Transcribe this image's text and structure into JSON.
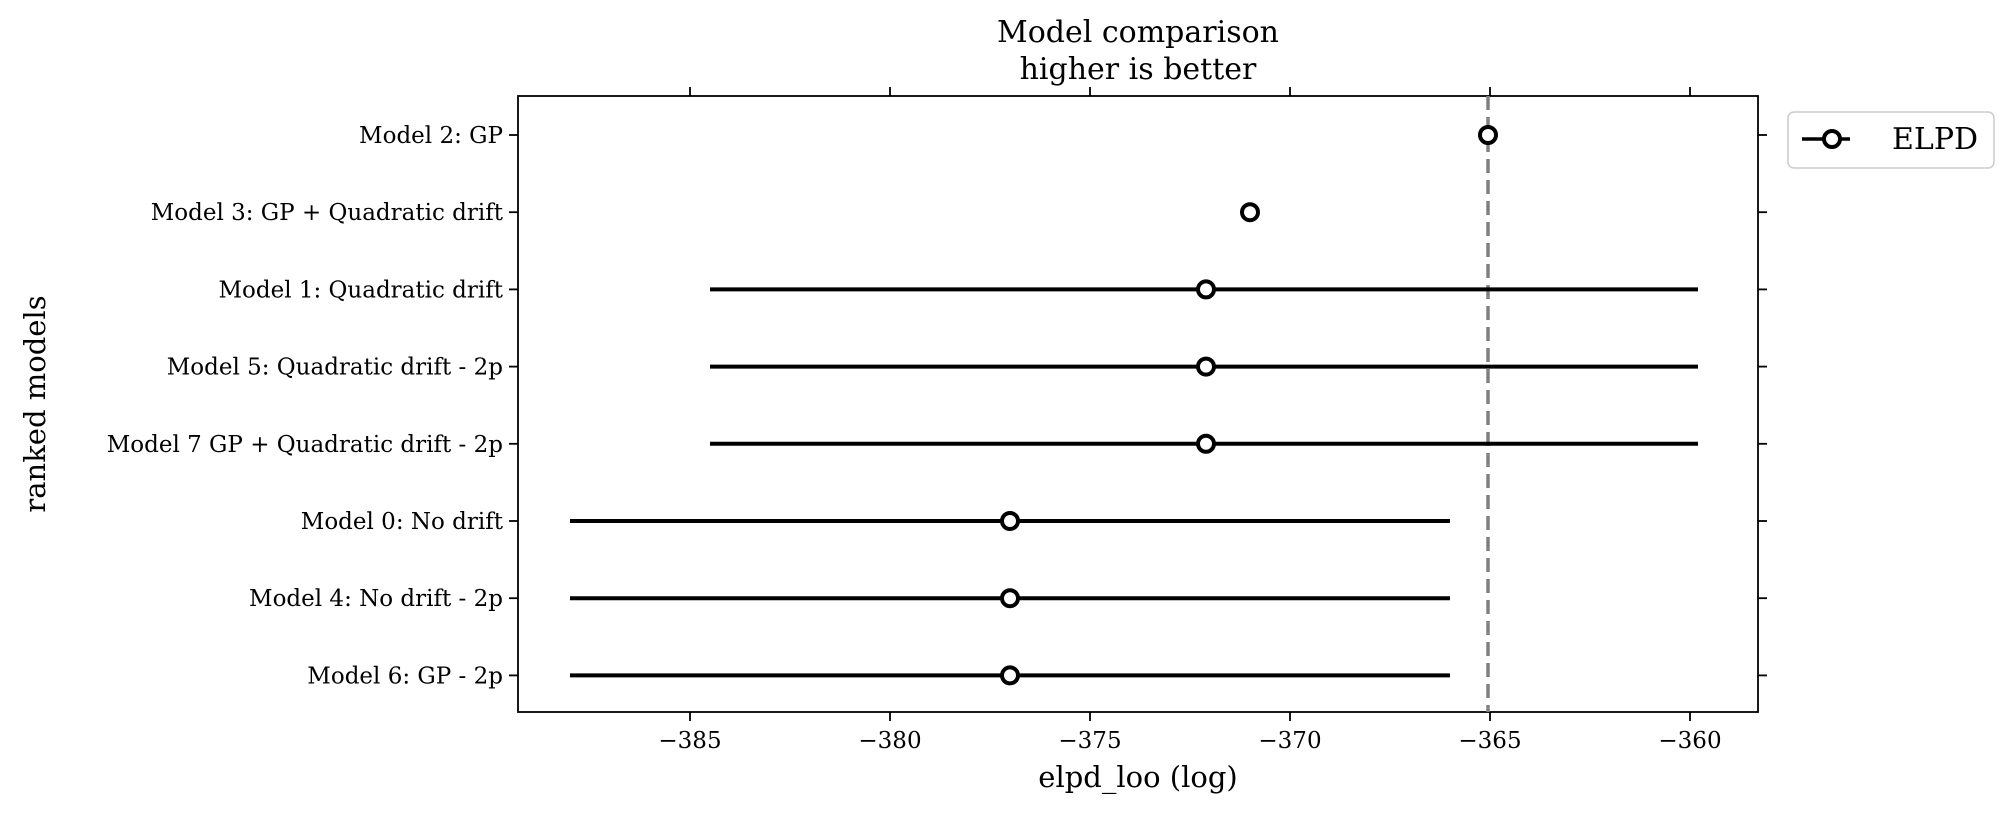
{
  "chart_data": {
    "type": "scatter",
    "title_lines": [
      "Model comparison",
      "higher is better"
    ],
    "xlabel": "elpd_loo (log)",
    "ylabel": "ranked models",
    "xlim": [
      -389.3,
      -358.3
    ],
    "x_ticks": [
      -385,
      -380,
      -375,
      -370,
      -365,
      -360
    ],
    "x_tick_labels": [
      "−385",
      "−380",
      "−375",
      "−370",
      "−365",
      "−360"
    ],
    "categories": [
      "Model 2: GP",
      "Model 3: GP + Quadratic drift",
      "Model 1: Quadratic drift",
      "Model 5: Quadratic drift - 2p",
      "Model 7 GP + Quadratic drift - 2p",
      "Model 0: No drift",
      "Model 4: No drift - 2p",
      "Model 6: GP - 2p"
    ],
    "series": [
      {
        "name": "ELPD",
        "values": [
          -365.05,
          -371.0,
          -372.1,
          -372.1,
          -372.1,
          -377.0,
          -377.0,
          -377.0
        ],
        "intervals": [
          null,
          null,
          [
            -384.5,
            -359.8
          ],
          [
            -384.5,
            -359.8
          ],
          [
            -384.5,
            -359.8
          ],
          [
            -388.0,
            -366.0
          ],
          [
            -388.0,
            -366.0
          ],
          [
            -388.0,
            -366.0
          ]
        ]
      }
    ],
    "reference_line": -365.05,
    "legend_position": "outside-top-right",
    "grid": false,
    "colors": {
      "marker_edge": "#000000",
      "marker_face": "#ffffff",
      "error_bar": "#000000",
      "reference_line": "#808080"
    }
  }
}
